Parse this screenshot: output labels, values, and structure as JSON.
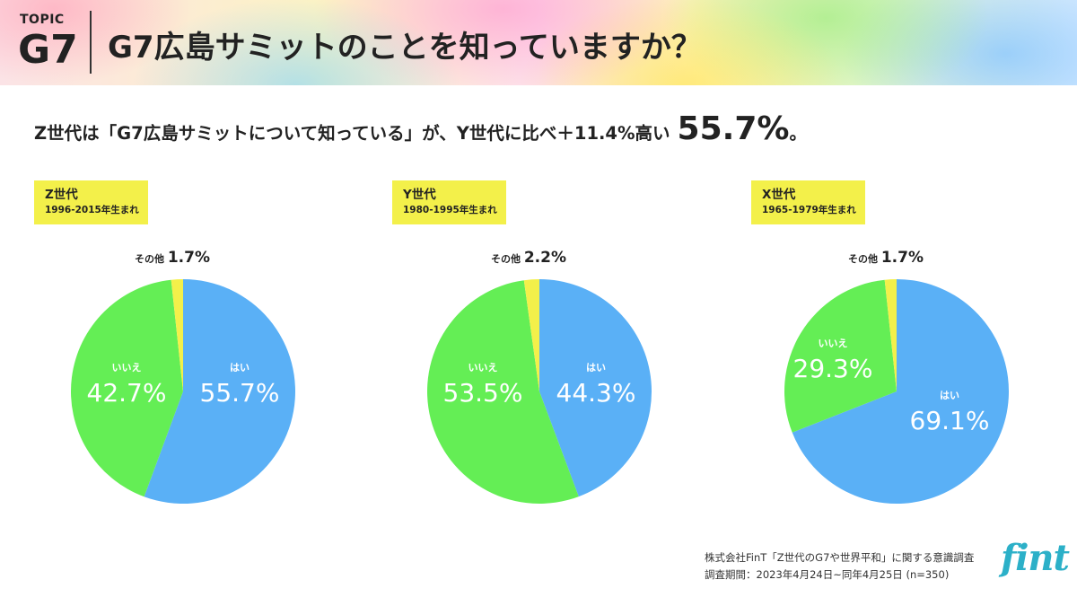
{
  "header": {
    "topic_small": "TOPIC",
    "topic_big": "G7",
    "title": "G7広島サミットのことを知っていますか？"
  },
  "headline": {
    "text": "Z世代は「G7広島サミットについて知っている」が、Y世代に比べ＋11.4%高い",
    "highlight": "55.7%",
    "tail": "。"
  },
  "colors": {
    "yes": "#5ab0f6",
    "no": "#64ee55",
    "other": "#f3f04a",
    "label_box": "#f3f04a",
    "logo": "#2cb0c8"
  },
  "chart_data": [
    {
      "type": "pie",
      "group": "Z世代",
      "range": "1996-2015年生まれ",
      "slices": [
        {
          "label": "はい",
          "value": 55.7,
          "display": "55.7%"
        },
        {
          "label": "いいえ",
          "value": 42.7,
          "display": "42.7%"
        },
        {
          "label": "その他",
          "value": 1.7,
          "display": "1.7%"
        }
      ]
    },
    {
      "type": "pie",
      "group": "Y世代",
      "range": "1980-1995年生まれ",
      "slices": [
        {
          "label": "はい",
          "value": 44.3,
          "display": "44.3%"
        },
        {
          "label": "いいえ",
          "value": 53.5,
          "display": "53.5%"
        },
        {
          "label": "その他",
          "value": 2.2,
          "display": "2.2%"
        }
      ]
    },
    {
      "type": "pie",
      "group": "X世代",
      "range": "1965-1979年生まれ",
      "slices": [
        {
          "label": "はい",
          "value": 69.1,
          "display": "69.1%"
        },
        {
          "label": "いいえ",
          "value": 29.3,
          "display": "29.3%"
        },
        {
          "label": "その他",
          "value": 1.7,
          "display": "1.7%"
        }
      ]
    }
  ],
  "footer": {
    "source": "株式会社FinT「Z世代のG7や世界平和」に関する意識調査",
    "period": "調査期間：2023年4月24日~同年4月25日 (n=350)"
  },
  "logo": {
    "text": "fint"
  }
}
